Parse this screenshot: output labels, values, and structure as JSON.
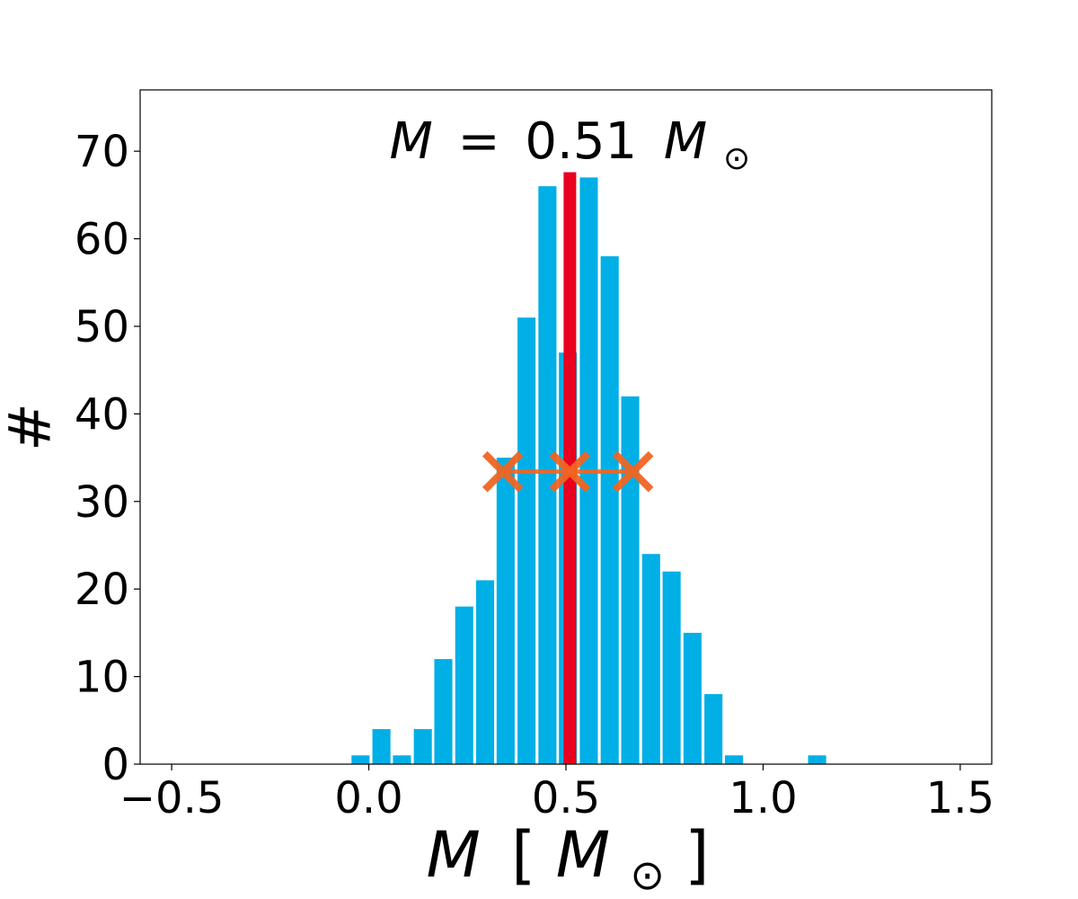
{
  "chart_data": {
    "type": "bar",
    "xlabel": "M [M⊙]",
    "xlabel_parts": {
      "var": "M",
      "lbr": "[",
      "unit": "M",
      "sub": "⊙",
      "rbr": "]"
    },
    "ylabel": "#",
    "annotation": "M = 0.51 M⊙",
    "annotation_parts": {
      "var": "M",
      "eq": "=",
      "num": "0.51",
      "unit": "M",
      "sub": "⊙"
    },
    "xlim": [
      -0.58,
      1.58
    ],
    "ylim": [
      0,
      77
    ],
    "x_ticks": [
      -0.5,
      0.0,
      0.5,
      1.0,
      1.5
    ],
    "x_tick_labels": [
      "−0.5",
      "0.0",
      "0.5",
      "1.0",
      "1.5"
    ],
    "y_ticks": [
      0,
      10,
      20,
      30,
      40,
      50,
      60,
      70
    ],
    "y_tick_labels": [
      "0",
      "10",
      "20",
      "30",
      "40",
      "50",
      "60",
      "70"
    ],
    "bin_width": 0.0526,
    "bins": [
      {
        "x": -0.021,
        "count": 1
      },
      {
        "x": 0.032,
        "count": 4
      },
      {
        "x": 0.084,
        "count": 1
      },
      {
        "x": 0.137,
        "count": 4
      },
      {
        "x": 0.189,
        "count": 12
      },
      {
        "x": 0.242,
        "count": 18
      },
      {
        "x": 0.295,
        "count": 21
      },
      {
        "x": 0.347,
        "count": 35
      },
      {
        "x": 0.4,
        "count": 51
      },
      {
        "x": 0.453,
        "count": 66
      },
      {
        "x": 0.505,
        "count": 47
      },
      {
        "x": 0.558,
        "count": 67
      },
      {
        "x": 0.611,
        "count": 58
      },
      {
        "x": 0.663,
        "count": 42
      },
      {
        "x": 0.716,
        "count": 24
      },
      {
        "x": 0.768,
        "count": 22
      },
      {
        "x": 0.821,
        "count": 15
      },
      {
        "x": 0.874,
        "count": 8
      },
      {
        "x": 0.926,
        "count": 1
      },
      {
        "x": 1.137,
        "count": 1
      }
    ],
    "mean_line": {
      "x": 0.51,
      "y_top": 67.6
    },
    "interval": {
      "low": 0.34,
      "mid": 0.51,
      "high": 0.67,
      "y": 33.4
    },
    "colors": {
      "bars": "#00afe6",
      "mean_line": "#e8001e",
      "interval": "#f26522",
      "axes": "#000000"
    },
    "grid": false
  }
}
